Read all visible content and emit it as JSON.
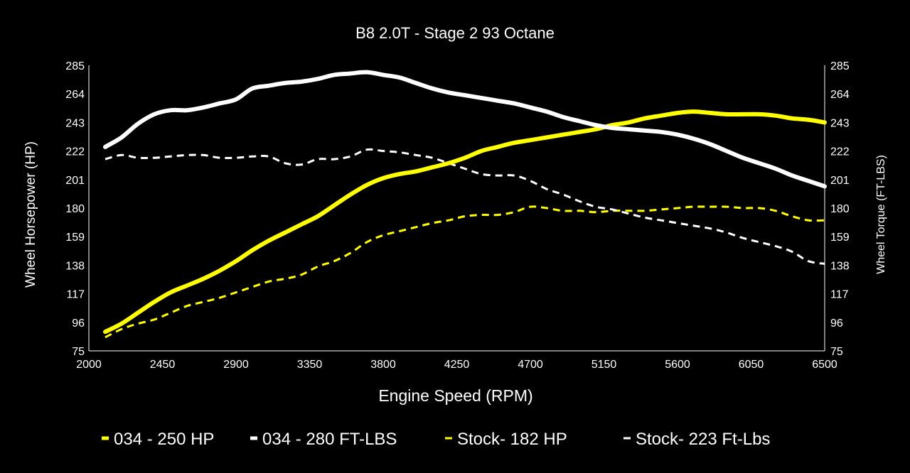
{
  "chart_data": {
    "type": "line",
    "title": "B8 2.0T - Stage 2 93 Octane",
    "xlabel": "Engine Speed (RPM)",
    "ylabel_left": "Wheel Horsepower (HP)",
    "ylabel_right": "Wheel Torque (FT-LBS)",
    "xlim": [
      2000,
      6500
    ],
    "ylim": [
      75,
      285
    ],
    "x_ticks": [
      2000,
      2450,
      2900,
      3350,
      3800,
      4250,
      4700,
      5150,
      5600,
      6050,
      6500
    ],
    "y_ticks": [
      75,
      96,
      117,
      138,
      159,
      180,
      201,
      222,
      243,
      264,
      285
    ],
    "grid": false,
    "legend_position": "bottom",
    "series": [
      {
        "name": "034 - 250 HP",
        "color": "#ffff00",
        "style": "solid",
        "points": [
          [
            2100,
            89
          ],
          [
            2200,
            95
          ],
          [
            2300,
            103
          ],
          [
            2400,
            111
          ],
          [
            2500,
            118
          ],
          [
            2600,
            123
          ],
          [
            2700,
            128
          ],
          [
            2800,
            134
          ],
          [
            2900,
            141
          ],
          [
            3000,
            149
          ],
          [
            3100,
            156
          ],
          [
            3200,
            162
          ],
          [
            3300,
            168
          ],
          [
            3400,
            174
          ],
          [
            3500,
            182
          ],
          [
            3600,
            190
          ],
          [
            3700,
            197
          ],
          [
            3800,
            202
          ],
          [
            3900,
            205
          ],
          [
            4000,
            207
          ],
          [
            4100,
            210
          ],
          [
            4200,
            213
          ],
          [
            4300,
            217
          ],
          [
            4400,
            222
          ],
          [
            4500,
            225
          ],
          [
            4600,
            228
          ],
          [
            4700,
            230
          ],
          [
            4800,
            232
          ],
          [
            4900,
            234
          ],
          [
            5000,
            236
          ],
          [
            5100,
            238
          ],
          [
            5200,
            241
          ],
          [
            5300,
            243
          ],
          [
            5400,
            246
          ],
          [
            5500,
            248
          ],
          [
            5600,
            250
          ],
          [
            5700,
            251
          ],
          [
            5800,
            250
          ],
          [
            5900,
            249
          ],
          [
            6000,
            249
          ],
          [
            6100,
            249
          ],
          [
            6200,
            248
          ],
          [
            6300,
            246
          ],
          [
            6400,
            245
          ],
          [
            6500,
            243
          ]
        ]
      },
      {
        "name": "034 - 280 FT-LBS",
        "color": "#ffffff",
        "style": "solid",
        "points": [
          [
            2100,
            225
          ],
          [
            2200,
            232
          ],
          [
            2300,
            242
          ],
          [
            2400,
            249
          ],
          [
            2500,
            252
          ],
          [
            2600,
            252
          ],
          [
            2700,
            254
          ],
          [
            2800,
            257
          ],
          [
            2900,
            260
          ],
          [
            3000,
            268
          ],
          [
            3100,
            270
          ],
          [
            3200,
            272
          ],
          [
            3300,
            273
          ],
          [
            3400,
            275
          ],
          [
            3500,
            278
          ],
          [
            3600,
            279
          ],
          [
            3700,
            280
          ],
          [
            3800,
            278
          ],
          [
            3900,
            276
          ],
          [
            4000,
            272
          ],
          [
            4100,
            268
          ],
          [
            4200,
            265
          ],
          [
            4300,
            263
          ],
          [
            4400,
            261
          ],
          [
            4500,
            259
          ],
          [
            4600,
            257
          ],
          [
            4700,
            254
          ],
          [
            4800,
            251
          ],
          [
            4900,
            247
          ],
          [
            5000,
            244
          ],
          [
            5100,
            241
          ],
          [
            5200,
            239
          ],
          [
            5300,
            238
          ],
          [
            5400,
            237
          ],
          [
            5500,
            236
          ],
          [
            5600,
            234
          ],
          [
            5700,
            231
          ],
          [
            5800,
            227
          ],
          [
            5900,
            222
          ],
          [
            6000,
            217
          ],
          [
            6100,
            213
          ],
          [
            6200,
            209
          ],
          [
            6300,
            204
          ],
          [
            6400,
            200
          ],
          [
            6500,
            196
          ]
        ]
      },
      {
        "name": "Stock- 182 HP",
        "color": "#ffff00",
        "style": "dashed",
        "points": [
          [
            2100,
            85
          ],
          [
            2200,
            91
          ],
          [
            2300,
            95
          ],
          [
            2400,
            98
          ],
          [
            2500,
            103
          ],
          [
            2600,
            108
          ],
          [
            2700,
            111
          ],
          [
            2800,
            114
          ],
          [
            2900,
            118
          ],
          [
            3000,
            122
          ],
          [
            3100,
            126
          ],
          [
            3200,
            128
          ],
          [
            3300,
            131
          ],
          [
            3400,
            137
          ],
          [
            3500,
            141
          ],
          [
            3600,
            147
          ],
          [
            3700,
            155
          ],
          [
            3800,
            160
          ],
          [
            3900,
            163
          ],
          [
            4000,
            166
          ],
          [
            4100,
            169
          ],
          [
            4200,
            171
          ],
          [
            4300,
            174
          ],
          [
            4400,
            175
          ],
          [
            4500,
            175
          ],
          [
            4600,
            177
          ],
          [
            4700,
            181
          ],
          [
            4800,
            180
          ],
          [
            4900,
            178
          ],
          [
            5000,
            178
          ],
          [
            5100,
            177
          ],
          [
            5200,
            178
          ],
          [
            5300,
            178
          ],
          [
            5400,
            178
          ],
          [
            5500,
            179
          ],
          [
            5600,
            180
          ],
          [
            5700,
            181
          ],
          [
            5800,
            181
          ],
          [
            5900,
            181
          ],
          [
            6000,
            180
          ],
          [
            6100,
            180
          ],
          [
            6200,
            178
          ],
          [
            6300,
            174
          ],
          [
            6400,
            171
          ],
          [
            6500,
            171
          ]
        ]
      },
      {
        "name": "Stock- 223 Ft-Lbs",
        "color": "#ffffff",
        "style": "dashed",
        "points": [
          [
            2100,
            216
          ],
          [
            2200,
            219
          ],
          [
            2300,
            217
          ],
          [
            2400,
            217
          ],
          [
            2500,
            218
          ],
          [
            2600,
            219
          ],
          [
            2700,
            219
          ],
          [
            2800,
            217
          ],
          [
            2900,
            217
          ],
          [
            3000,
            218
          ],
          [
            3100,
            218
          ],
          [
            3200,
            213
          ],
          [
            3300,
            212
          ],
          [
            3400,
            216
          ],
          [
            3500,
            216
          ],
          [
            3600,
            218
          ],
          [
            3700,
            223
          ],
          [
            3800,
            222
          ],
          [
            3900,
            221
          ],
          [
            4000,
            219
          ],
          [
            4100,
            217
          ],
          [
            4200,
            213
          ],
          [
            4300,
            209
          ],
          [
            4400,
            205
          ],
          [
            4500,
            204
          ],
          [
            4600,
            204
          ],
          [
            4700,
            200
          ],
          [
            4800,
            194
          ],
          [
            4900,
            190
          ],
          [
            5000,
            185
          ],
          [
            5100,
            181
          ],
          [
            5200,
            179
          ],
          [
            5300,
            176
          ],
          [
            5400,
            173
          ],
          [
            5500,
            171
          ],
          [
            5600,
            169
          ],
          [
            5700,
            167
          ],
          [
            5800,
            165
          ],
          [
            5900,
            162
          ],
          [
            6000,
            158
          ],
          [
            6100,
            155
          ],
          [
            6200,
            152
          ],
          [
            6300,
            148
          ],
          [
            6400,
            141
          ],
          [
            6500,
            139
          ]
        ]
      }
    ]
  }
}
